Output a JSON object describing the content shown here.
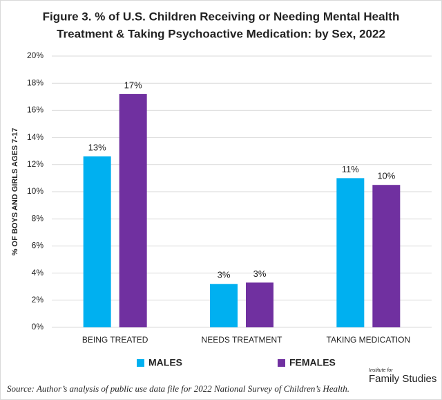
{
  "chart_data": {
    "type": "bar",
    "title": [
      "Figure 3. % of U.S. Children Receiving or Needing Mental Health",
      "Treatment & Taking Psychoactive Medication: by Sex, 2022"
    ],
    "y_label": "% OF BOYS AND GIRLS AGES 7-17",
    "categories": [
      "BEING TREATED",
      "NEEDS TREATMENT",
      "TAKING MEDICATION"
    ],
    "series": [
      {
        "name": "MALES",
        "color": "#00b0f0",
        "values": [
          12.6,
          3.2,
          11.0
        ],
        "value_labels": [
          "13%",
          "3%",
          "11%"
        ]
      },
      {
        "name": "FEMALES",
        "color": "#7030a0",
        "values": [
          17.2,
          3.3,
          10.5
        ],
        "value_labels": [
          "17%",
          "3%",
          "10%"
        ]
      }
    ],
    "ylim": [
      0,
      20
    ],
    "yticks": [
      {
        "value": 0,
        "label": "0%"
      },
      {
        "value": 2,
        "label": "2%"
      },
      {
        "value": 4,
        "label": "4%"
      },
      {
        "value": 6,
        "label": "6%"
      },
      {
        "value": 8,
        "label": "8%"
      },
      {
        "value": 10,
        "label": "10%"
      },
      {
        "value": 12,
        "label": "12%"
      },
      {
        "value": 14,
        "label": "14%"
      },
      {
        "value": 16,
        "label": "16%"
      },
      {
        "value": 18,
        "label": "18%"
      },
      {
        "value": 20,
        "label": "20%"
      }
    ],
    "grid": true,
    "legend": "bottom",
    "source": "Source: Author’s analysis of public use data file for 2022 National Survey of Children’s Health.",
    "logo": [
      "Institute for",
      "Family Studies"
    ]
  }
}
